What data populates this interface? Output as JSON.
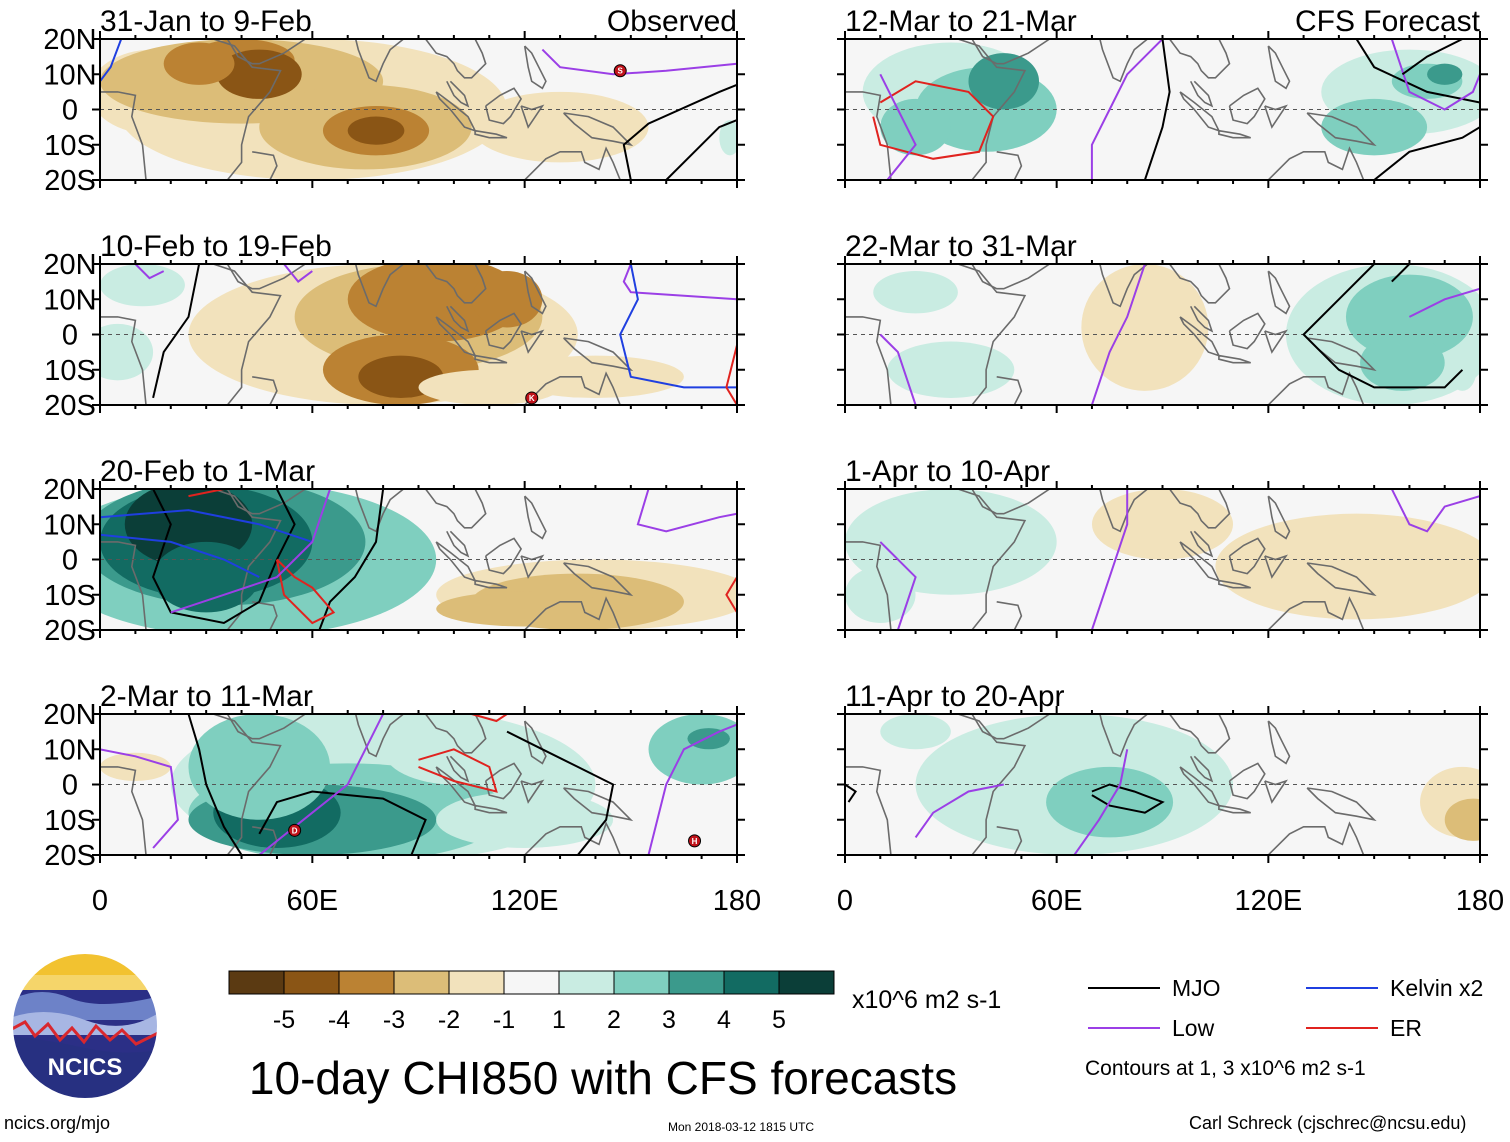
{
  "chart_data": {
    "type": "heatmap",
    "title": "10-day CHI850 with CFS forecasts",
    "variable": "CHI850",
    "units": "x10^6 m2 s-1",
    "x_tick_labels": [
      "0",
      "60E",
      "120E",
      "180"
    ],
    "y_tick_labels": [
      "20N",
      "10N",
      "0",
      "10S",
      "20S"
    ],
    "xlim": [
      0,
      180
    ],
    "ylim": [
      -20,
      20
    ],
    "colorbar": {
      "levels": [
        "-5",
        "-4",
        "-3",
        "-2",
        "-1",
        "1",
        "2",
        "3",
        "4",
        "5"
      ],
      "colors": [
        "#5b3a12",
        "#8a5515",
        "#bb8233",
        "#dcbd78",
        "#f2e2bc",
        "#f6f6f6",
        "#c9ece2",
        "#7fcfbf",
        "#3b9a8c",
        "#126b62",
        "#0b3e38"
      ]
    },
    "panels": [
      {
        "column": "observed",
        "period": "31-Jan to 9-Feb",
        "corner_label": "Observed",
        "x_axis_ticks": false
      },
      {
        "column": "observed",
        "period": "10-Feb to 19-Feb",
        "x_axis_ticks": false
      },
      {
        "column": "observed",
        "period": "20-Feb to 1-Mar",
        "x_axis_ticks": false
      },
      {
        "column": "observed",
        "period": "2-Mar to 11-Mar",
        "x_axis_ticks": true
      },
      {
        "column": "forecast",
        "period": "12-Mar to 21-Mar",
        "corner_label": "CFS Forecast",
        "x_axis_ticks": false
      },
      {
        "column": "forecast",
        "period": "22-Mar to 31-Mar",
        "x_axis_ticks": false
      },
      {
        "column": "forecast",
        "period": "1-Apr to 10-Apr",
        "x_axis_ticks": false
      },
      {
        "column": "forecast",
        "period": "11-Apr to 20-Apr",
        "x_axis_ticks": true
      }
    ],
    "legend": {
      "items": [
        {
          "label": "MJO",
          "color": "#000000"
        },
        {
          "label": "Kelvin x2",
          "color": "#1f3fe0"
        },
        {
          "label": "Low",
          "color": "#9b3fe6"
        },
        {
          "label": "ER",
          "color": "#e0231f"
        }
      ],
      "note": "Contours at 1, 3 x10^6 m2 s-1"
    },
    "storm_markers": [
      {
        "panel": 0,
        "letter": "S",
        "lon": 147,
        "lat": 11
      },
      {
        "panel": 1,
        "letter": "K",
        "lon": 122,
        "lat": -18
      },
      {
        "panel": 3,
        "letter": "D",
        "lon": 55,
        "lat": -13
      },
      {
        "panel": 3,
        "letter": "H",
        "lon": 168,
        "lat": -16
      }
    ]
  },
  "footer": {
    "logo_text": "NCICS",
    "site": "ncics.org/mjo",
    "timestamp": "Mon 2018-03-12 1815 UTC",
    "author": "Carl Schreck (cjschrec@ncsu.edu)"
  }
}
